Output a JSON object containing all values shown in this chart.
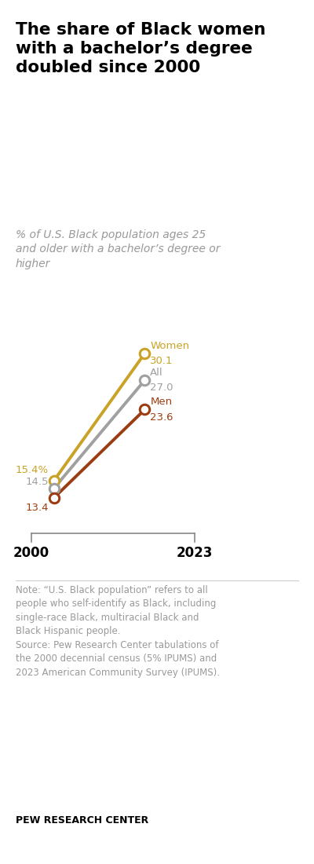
{
  "title": "The share of Black women\nwith a bachelor’s degree\ndoubled since 2000",
  "subtitle": "% of U.S. Black population ages 25\nand older with a bachelor’s degree or\nhigher",
  "series": [
    {
      "label": "Women",
      "color": "#C9A227",
      "values": [
        15.4,
        30.1
      ],
      "start_label": "15.4%",
      "end_label": "Women\n30.1"
    },
    {
      "label": "All",
      "color": "#A0A0A0",
      "values": [
        14.5,
        27.0
      ],
      "start_label": "14.5",
      "end_label": "All\n27.0"
    },
    {
      "label": "Men",
      "color": "#9B3D12",
      "values": [
        13.4,
        23.6
      ],
      "start_label": "13.4",
      "end_label": "Men\n23.6"
    }
  ],
  "years": [
    2000,
    2023
  ],
  "note": "Note: “U.S. Black population” refers to all\npeople who self-identify as Black, including\nsingle-race Black, multiracial Black and\nBlack Hispanic people.\nSource: Pew Research Center tabulations of\nthe 2000 decennial census (5% IPUMS) and\n2023 American Community Survey (IPUMS).",
  "source_label": "PEW RESEARCH CENTER",
  "background_color": "#FFFFFF",
  "title_color": "#000000",
  "subtitle_color": "#999999",
  "note_color": "#999999"
}
